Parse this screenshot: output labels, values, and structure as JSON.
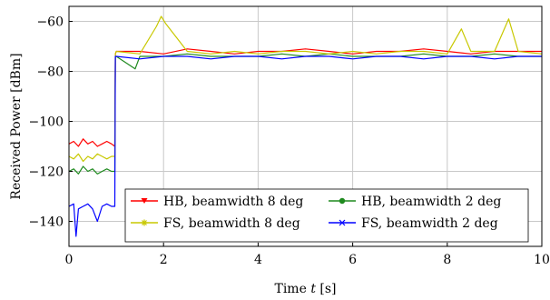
{
  "chart_data": {
    "type": "line",
    "title": "",
    "xlabel": "Time t [s]",
    "xlabel_parts": {
      "prefix": "Time ",
      "var": "t",
      "suffix": " [s]"
    },
    "ylabel": "Received Power [dBm]",
    "xlim": [
      0,
      10
    ],
    "ylim": [
      -150,
      -54
    ],
    "xticks": [
      0,
      2,
      4,
      6,
      8,
      10
    ],
    "yticks": [
      -140,
      -120,
      -100,
      -80,
      -60
    ],
    "grid": true,
    "legend": {
      "placement": "lower-right",
      "columns": 2
    },
    "series": [
      {
        "name": "HB, beamwidth 8 deg",
        "color": "#ff0000",
        "marker": "triangle-down",
        "x": [
          0,
          0.1,
          0.2,
          0.3,
          0.4,
          0.5,
          0.6,
          0.7,
          0.8,
          0.9,
          0.97,
          0.98,
          1.0,
          1.5,
          2.0,
          2.5,
          3.0,
          3.5,
          4.0,
          4.5,
          5.0,
          5.5,
          6.0,
          6.5,
          7.0,
          7.5,
          8.0,
          8.5,
          9.0,
          9.5,
          10.0
        ],
        "y": [
          -109,
          -108,
          -110,
          -107,
          -109,
          -108,
          -110,
          -109,
          -108,
          -109,
          -110,
          -73,
          -72,
          -72,
          -73,
          -71,
          -72,
          -73,
          -72,
          -72,
          -71,
          -72,
          -73,
          -72,
          -72,
          -71,
          -72,
          -73,
          -72,
          -72,
          -72
        ]
      },
      {
        "name": "HB, beamwidth 2 deg",
        "color": "#1f8a1f",
        "marker": "circle",
        "x": [
          0,
          0.1,
          0.2,
          0.3,
          0.4,
          0.5,
          0.6,
          0.7,
          0.8,
          0.9,
          0.97,
          0.98,
          1.0,
          1.4,
          1.5,
          2.0,
          2.5,
          3.0,
          3.5,
          4.0,
          4.5,
          5.0,
          5.5,
          6.0,
          6.5,
          7.0,
          7.5,
          8.0,
          8.5,
          9.0,
          9.5,
          10.0
        ],
        "y": [
          -120,
          -119,
          -121,
          -118,
          -120,
          -119,
          -121,
          -120,
          -119,
          -120,
          -120,
          -74,
          -74,
          -79,
          -74,
          -74,
          -73,
          -74,
          -74,
          -74,
          -73,
          -74,
          -73,
          -74,
          -74,
          -74,
          -73,
          -74,
          -74,
          -73,
          -74,
          -74
        ]
      },
      {
        "name": "FS, beamwidth 8 deg",
        "color": "#c8c800",
        "marker": "star",
        "x": [
          0,
          0.1,
          0.2,
          0.3,
          0.4,
          0.5,
          0.6,
          0.7,
          0.8,
          0.9,
          0.97,
          0.98,
          1.0,
          1.5,
          1.85,
          1.95,
          2.05,
          2.5,
          3.0,
          3.5,
          4.0,
          4.5,
          5.0,
          5.5,
          6.0,
          6.5,
          7.0,
          7.5,
          8.0,
          8.3,
          8.5,
          9.0,
          9.3,
          9.5,
          10.0
        ],
        "y": [
          -114,
          -115,
          -113,
          -116,
          -114,
          -115,
          -113,
          -114,
          -115,
          -114,
          -114,
          -73,
          -72,
          -73,
          -62,
          -58,
          -61,
          -72,
          -73,
          -72,
          -73,
          -72,
          -72,
          -73,
          -72,
          -73,
          -72,
          -72,
          -73,
          -63,
          -72,
          -72,
          -59,
          -72,
          -73
        ]
      },
      {
        "name": "FS, beamwidth 2 deg",
        "color": "#0000ff",
        "marker": "x",
        "x": [
          0,
          0.1,
          0.15,
          0.2,
          0.3,
          0.4,
          0.5,
          0.6,
          0.7,
          0.8,
          0.9,
          0.97,
          0.98,
          1.0,
          1.5,
          2.0,
          2.5,
          3.0,
          3.5,
          4.0,
          4.5,
          5.0,
          5.5,
          6.0,
          6.5,
          7.0,
          7.5,
          8.0,
          8.5,
          9.0,
          9.5,
          10.0
        ],
        "y": [
          -134,
          -133,
          -146,
          -135,
          -134,
          -133,
          -135,
          -140,
          -134,
          -133,
          -134,
          -134,
          -74,
          -74,
          -75,
          -74,
          -74,
          -75,
          -74,
          -74,
          -75,
          -74,
          -74,
          -75,
          -74,
          -74,
          -75,
          -74,
          -74,
          -75,
          -74,
          -74
        ]
      }
    ]
  }
}
